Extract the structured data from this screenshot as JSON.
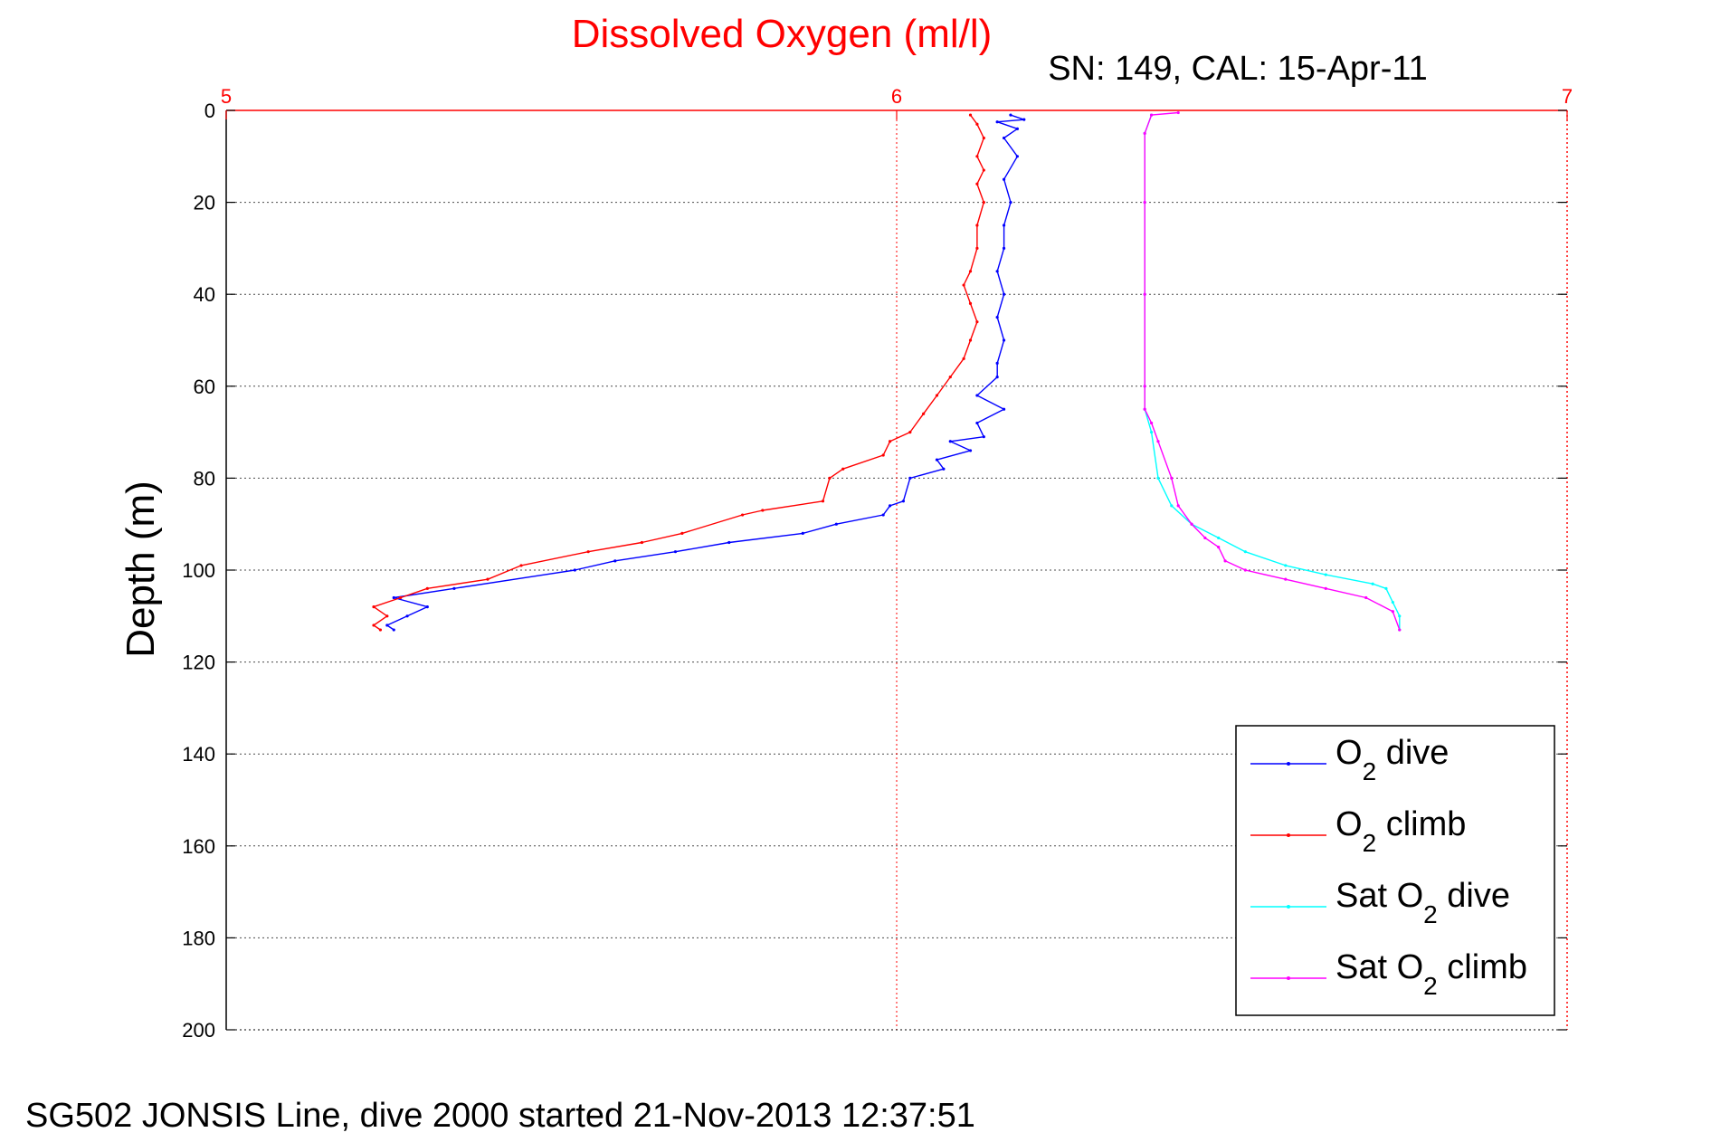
{
  "chart_data": {
    "type": "line",
    "title": "Dissolved Oxygen (ml/l)",
    "subtitle": "SN: 149, CAL: 15-Apr-11",
    "ylabel": "Depth (m)",
    "xlim": [
      5,
      7
    ],
    "ylim": [
      0,
      200
    ],
    "y_reversed": true,
    "x_axis_position": "top",
    "x_ticks": [
      "5",
      "6",
      "7"
    ],
    "y_ticks": [
      "0",
      "20",
      "40",
      "60",
      "80",
      "100",
      "120",
      "140",
      "160",
      "180",
      "200"
    ],
    "grid": true,
    "legend_position": "bottom-right",
    "colors": {
      "title": "#ff0000",
      "x_axis": "#ff0000",
      "y_axis": "#000000"
    },
    "series": [
      {
        "name": "O2 dive",
        "legend": {
          "base": "O",
          "sub": "2",
          "rest": " dive"
        },
        "color": "#0000ff",
        "points": [
          [
            6.17,
            1
          ],
          [
            6.19,
            2
          ],
          [
            6.15,
            2.5
          ],
          [
            6.18,
            4
          ],
          [
            6.16,
            6
          ],
          [
            6.18,
            10
          ],
          [
            6.16,
            15
          ],
          [
            6.17,
            20
          ],
          [
            6.16,
            25
          ],
          [
            6.16,
            30
          ],
          [
            6.15,
            35
          ],
          [
            6.16,
            40
          ],
          [
            6.15,
            45
          ],
          [
            6.16,
            50
          ],
          [
            6.15,
            55
          ],
          [
            6.15,
            58
          ],
          [
            6.12,
            62
          ],
          [
            6.16,
            65
          ],
          [
            6.12,
            68
          ],
          [
            6.13,
            71
          ],
          [
            6.08,
            72
          ],
          [
            6.11,
            74
          ],
          [
            6.06,
            76
          ],
          [
            6.07,
            78
          ],
          [
            6.02,
            80
          ],
          [
            6.01,
            85
          ],
          [
            5.99,
            86
          ],
          [
            5.98,
            88
          ],
          [
            5.91,
            90
          ],
          [
            5.86,
            92
          ],
          [
            5.75,
            94
          ],
          [
            5.67,
            96
          ],
          [
            5.58,
            98
          ],
          [
            5.52,
            100
          ],
          [
            5.34,
            104
          ],
          [
            5.25,
            106
          ],
          [
            5.3,
            108
          ],
          [
            5.27,
            110
          ],
          [
            5.24,
            112
          ],
          [
            5.25,
            113
          ]
        ]
      },
      {
        "name": "O2 climb",
        "legend": {
          "base": "O",
          "sub": "2",
          "rest": " climb"
        },
        "color": "#ff0000",
        "points": [
          [
            6.11,
            1
          ],
          [
            6.12,
            3
          ],
          [
            6.13,
            6
          ],
          [
            6.12,
            10
          ],
          [
            6.13,
            13
          ],
          [
            6.12,
            16
          ],
          [
            6.13,
            20
          ],
          [
            6.12,
            25
          ],
          [
            6.12,
            30
          ],
          [
            6.11,
            35
          ],
          [
            6.1,
            38
          ],
          [
            6.11,
            42
          ],
          [
            6.12,
            46
          ],
          [
            6.11,
            50
          ],
          [
            6.1,
            54
          ],
          [
            6.08,
            58
          ],
          [
            6.06,
            62
          ],
          [
            6.04,
            66
          ],
          [
            6.02,
            70
          ],
          [
            5.99,
            72
          ],
          [
            5.98,
            75
          ],
          [
            5.92,
            78
          ],
          [
            5.9,
            80
          ],
          [
            5.89,
            85
          ],
          [
            5.8,
            87
          ],
          [
            5.77,
            88
          ],
          [
            5.68,
            92
          ],
          [
            5.62,
            94
          ],
          [
            5.54,
            96
          ],
          [
            5.44,
            99
          ],
          [
            5.39,
            102
          ],
          [
            5.3,
            104
          ],
          [
            5.26,
            106
          ],
          [
            5.22,
            108
          ],
          [
            5.24,
            110
          ],
          [
            5.22,
            112
          ],
          [
            5.23,
            113
          ]
        ]
      },
      {
        "name": "Sat O2 dive",
        "legend": {
          "base": "Sat O",
          "sub": "2",
          "rest": " dive"
        },
        "color": "#00ffff",
        "points": [
          [
            6.38,
            1
          ],
          [
            6.37,
            5
          ],
          [
            6.37,
            20
          ],
          [
            6.37,
            40
          ],
          [
            6.37,
            60
          ],
          [
            6.37,
            65
          ],
          [
            6.38,
            70
          ],
          [
            6.39,
            80
          ],
          [
            6.41,
            86
          ],
          [
            6.44,
            90
          ],
          [
            6.48,
            93
          ],
          [
            6.52,
            96
          ],
          [
            6.58,
            99
          ],
          [
            6.64,
            101
          ],
          [
            6.71,
            103
          ],
          [
            6.73,
            104
          ],
          [
            6.74,
            107
          ],
          [
            6.75,
            110
          ],
          [
            6.75,
            113
          ]
        ]
      },
      {
        "name": "Sat O2 climb",
        "legend": {
          "base": "Sat O",
          "sub": "2",
          "rest": " climb"
        },
        "color": "#ff00ff",
        "points": [
          [
            6.42,
            0.5
          ],
          [
            6.38,
            1
          ],
          [
            6.37,
            5
          ],
          [
            6.37,
            20
          ],
          [
            6.37,
            40
          ],
          [
            6.37,
            60
          ],
          [
            6.37,
            65
          ],
          [
            6.38,
            68
          ],
          [
            6.39,
            72
          ],
          [
            6.41,
            80
          ],
          [
            6.42,
            86
          ],
          [
            6.44,
            90
          ],
          [
            6.46,
            93
          ],
          [
            6.48,
            95
          ],
          [
            6.49,
            98
          ],
          [
            6.52,
            100
          ],
          [
            6.58,
            102
          ],
          [
            6.64,
            104
          ],
          [
            6.7,
            106
          ],
          [
            6.74,
            109
          ],
          [
            6.75,
            113
          ]
        ]
      }
    ]
  },
  "caption": "SG502 JONSIS Line, dive 2000 started 21-Nov-2013 12:37:51"
}
